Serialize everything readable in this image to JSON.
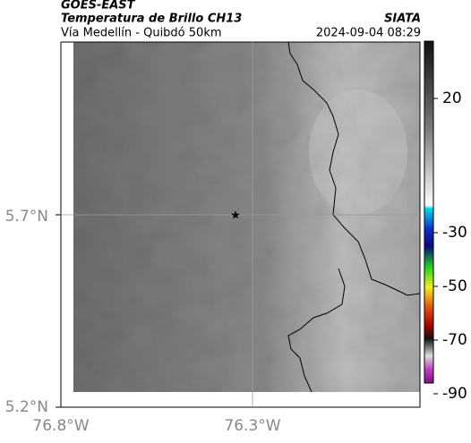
{
  "header": {
    "title": "GOES-EAST",
    "subtitle": "Temperatura de Brillo CH13",
    "source": "SIATA",
    "route": "Vía Medellín - Quibdó 50km",
    "timestamp": "2024-09-04 08:29"
  },
  "map": {
    "lat_labels": [
      "5.7°N",
      "5.2°N"
    ],
    "lon_labels": [
      "76.8°W",
      "76.3°W"
    ]
  },
  "colorbar": {
    "ticks": [
      20,
      -30,
      -50,
      -70,
      -90
    ]
  }
}
